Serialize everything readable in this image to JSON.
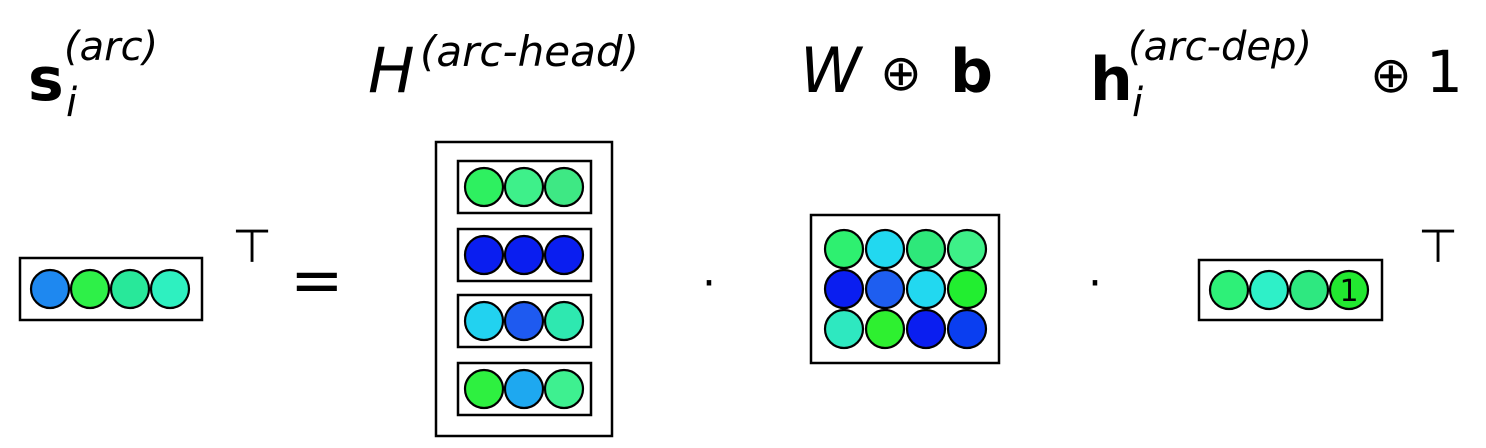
{
  "labels": {
    "s_base": "s",
    "s_sub": "i",
    "s_sup": "(arc)",
    "H_base": "H",
    "H_sup": "(arc-head)",
    "W_base": "W",
    "W_oplus": "⊕",
    "W_b": "b",
    "h_base": "h",
    "h_sub": "i",
    "h_sup": "(arc-dep)",
    "h_oplus": "⊕",
    "h_one": "1"
  },
  "operators": {
    "transpose": "⊤",
    "equals": "=",
    "dot": "·"
  },
  "vectors": {
    "s": [
      "#1e88f0",
      "#2ef048",
      "#28e89a",
      "#2ef0c0"
    ],
    "H": [
      [
        "#2ef060",
        "#3ef08a",
        "#3ee884"
      ],
      [
        "#0a1ef0",
        "#0a1ef0",
        "#0a1ef0"
      ],
      [
        "#22d2f0",
        "#1e5af0",
        "#2ee8b0"
      ],
      [
        "#2ef040",
        "#1ea8f0",
        "#3ef090"
      ]
    ],
    "W": [
      [
        "#2ef070",
        "#22d8f0",
        "#2ee87a",
        "#3ef088"
      ],
      [
        "#0a1ef0",
        "#1e5ef0",
        "#22d8f0",
        "#22ee30"
      ],
      [
        "#2ee8c0",
        "#2ef030",
        "#0a1ef0",
        "#0a3ef0"
      ]
    ],
    "h": [
      "#2ef078",
      "#2ef0c8",
      "#2ee880",
      "#22e830"
    ],
    "h_last_label": "1"
  }
}
